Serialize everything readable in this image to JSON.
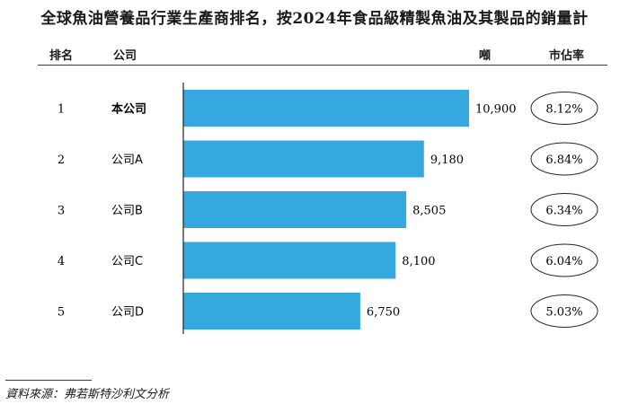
{
  "title": "全球魚油營養品行業生產商排名，按2024年食品級精製魚油及其製品的銷量計",
  "headers": {
    "rank": "排名",
    "company": "公司",
    "unit": "噸",
    "share": "市佔率"
  },
  "chart_data": {
    "type": "bar",
    "orientation": "horizontal",
    "categories": [
      "本公司",
      "公司A",
      "公司B",
      "公司C",
      "公司D"
    ],
    "ranks": [
      "1",
      "2",
      "3",
      "4",
      "5"
    ],
    "values": [
      10900,
      9180,
      8505,
      8100,
      6750
    ],
    "value_labels": [
      "10,900",
      "9,180",
      "8,505",
      "8,100",
      "6,750"
    ],
    "market_share": [
      "8.12%",
      "6.84%",
      "6.34%",
      "6.04%",
      "5.03%"
    ],
    "unit": "噸",
    "bar_color": "#35a9df",
    "highlight_category": "本公司"
  },
  "source": "資料來源：弗若斯特沙利文分析"
}
